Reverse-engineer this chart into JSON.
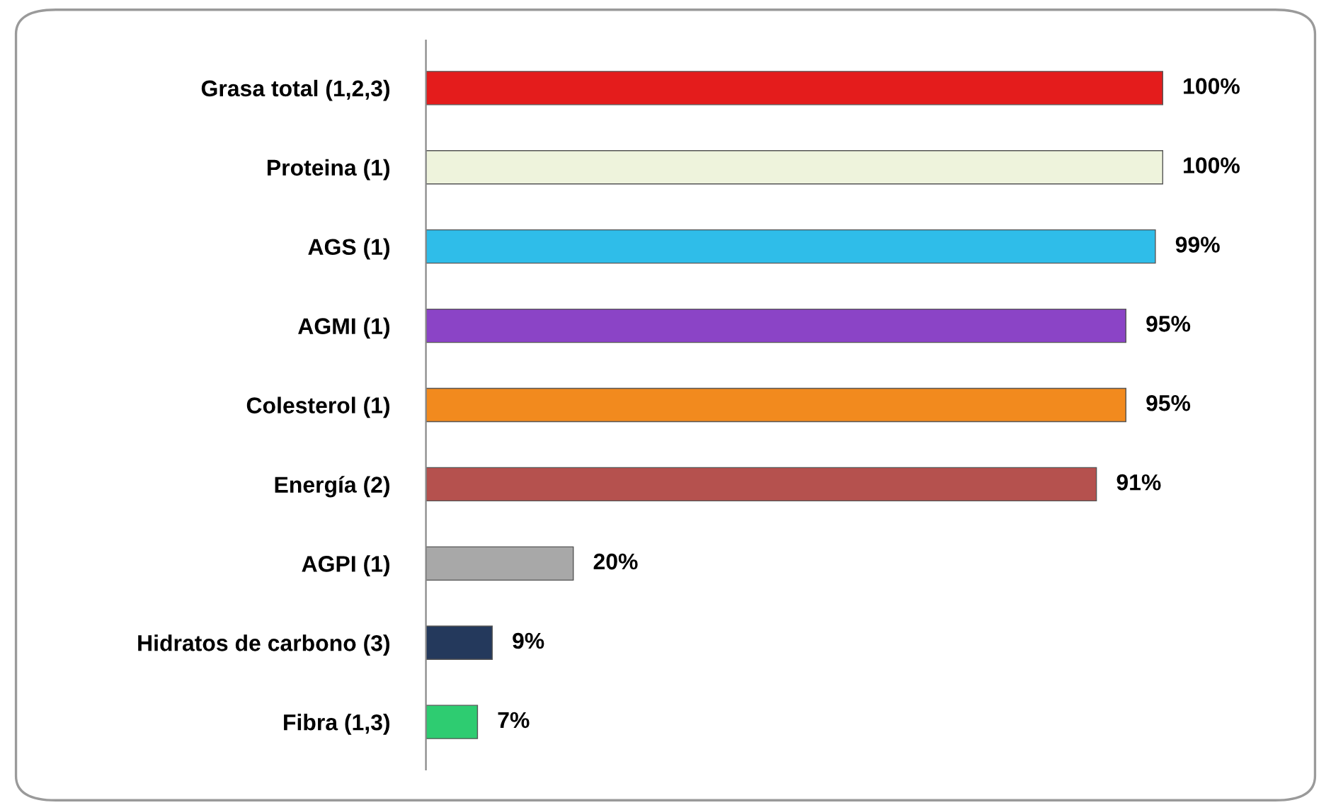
{
  "chart_data": {
    "type": "bar",
    "orientation": "horizontal",
    "categories": [
      "Grasa total (1,2,3)",
      "Proteina (1)",
      "AGS (1)",
      "AGMI (1)",
      "Colesterol (1)",
      "Energía (2)",
      "AGPI (1)",
      "Hidratos de carbono (3)",
      "Fibra (1,3)"
    ],
    "values": [
      100,
      100,
      99,
      95,
      95,
      91,
      20,
      9,
      7
    ],
    "colors": [
      "#e41c1c",
      "#eef3dc",
      "#2fbde9",
      "#8b44c6",
      "#f28a1e",
      "#b5514e",
      "#a8a8a8",
      "#24395c",
      "#2ecc71"
    ],
    "value_labels": [
      "100%",
      "100%",
      "99%",
      "95%",
      "95%",
      "91%",
      "20%",
      "9%",
      "7%"
    ],
    "grid": false,
    "legend": false
  }
}
